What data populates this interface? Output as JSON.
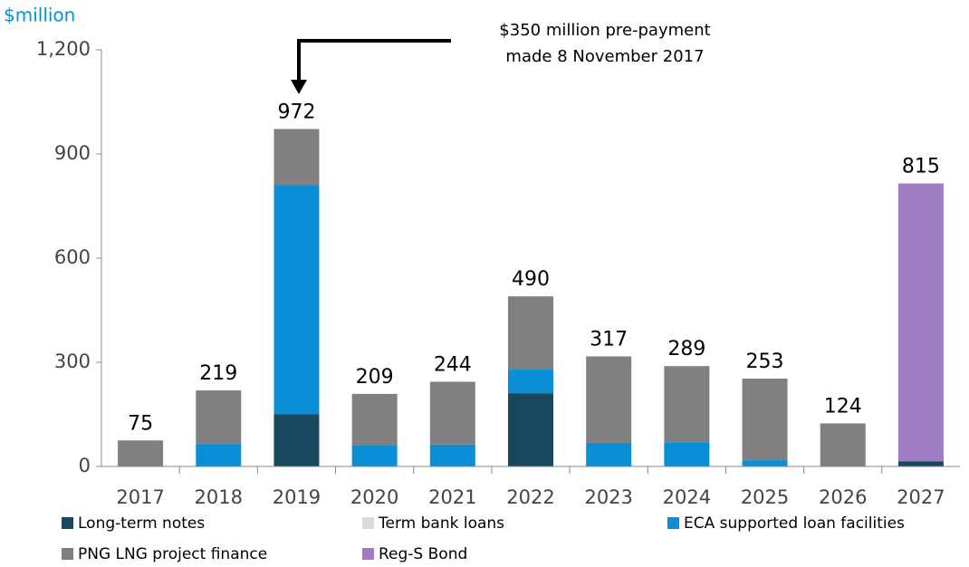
{
  "chart_data": {
    "type": "stacked_bar",
    "y_axis_label": "$million",
    "annotation": [
      "$350 million pre-payment",
      "made 8 November 2017"
    ],
    "categories": [
      "2017",
      "2018",
      "2019",
      "2020",
      "2021",
      "2022",
      "2023",
      "2024",
      "2025",
      "2026",
      "2027"
    ],
    "series": [
      {
        "name": "Long-term notes",
        "color": "#1a4760",
        "values": [
          0,
          0,
          150,
          0,
          0,
          211,
          0,
          0,
          0,
          0,
          15
        ]
      },
      {
        "name": "Term bank loans",
        "color": "#dcdcdc",
        "values": [
          0,
          0,
          0,
          0,
          0,
          0,
          0,
          0,
          0,
          0,
          0
        ]
      },
      {
        "name": "ECA supported loan facilities",
        "color": "#0a8fd6",
        "values": [
          0,
          65,
          660,
          60,
          63,
          68,
          68,
          70,
          18,
          0,
          0
        ]
      },
      {
        "name": "PNG LNG project finance",
        "color": "#808080",
        "values": [
          75,
          154,
          162,
          149,
          181,
          211,
          249,
          219,
          235,
          124,
          0
        ]
      },
      {
        "name": "Reg-S Bond",
        "color": "#a07cc4",
        "values": [
          0,
          0,
          0,
          0,
          0,
          0,
          0,
          0,
          0,
          0,
          800
        ]
      }
    ],
    "totals": [
      75,
      219,
      972,
      209,
      244,
      490,
      317,
      289,
      253,
      124,
      815
    ],
    "ylim": [
      0,
      1200
    ],
    "yticks": [
      0,
      300,
      600,
      900,
      {
        "value": 1200,
        "label": "1,200"
      }
    ],
    "legend": "bottom"
  }
}
